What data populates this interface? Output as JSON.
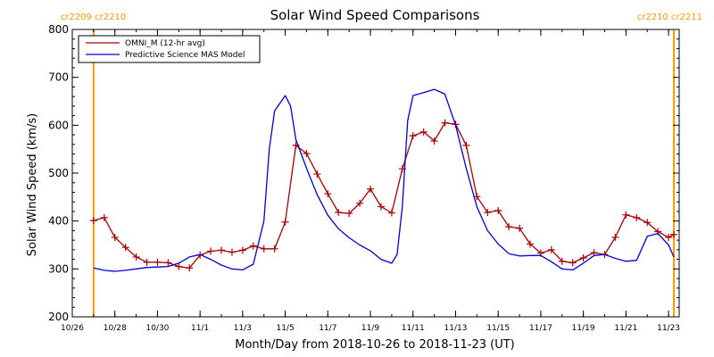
{
  "chart_data": {
    "type": "line",
    "title": "Solar Wind Speed Comparisons",
    "xlabel": "Month/Day from 2018-10-26 to 2018-11-23 (UT)",
    "ylabel": "Solar Wind Speed (km/s)",
    "ylim": [
      200,
      800
    ],
    "xlim": [
      "2018-10-26",
      "2018-11-23T12:00"
    ],
    "y_ticks": [
      200,
      300,
      400,
      500,
      600,
      700,
      800
    ],
    "x_ticks": [
      {
        "date": "2018-10-26",
        "label": "10/26"
      },
      {
        "date": "2018-10-28",
        "label": "10/28"
      },
      {
        "date": "2018-10-30",
        "label": "10/30"
      },
      {
        "date": "2018-11-01",
        "label": "11/1"
      },
      {
        "date": "2018-11-03",
        "label": "11/3"
      },
      {
        "date": "2018-11-05",
        "label": "11/5"
      },
      {
        "date": "2018-11-07",
        "label": "11/7"
      },
      {
        "date": "2018-11-09",
        "label": "11/9"
      },
      {
        "date": "2018-11-11",
        "label": "11/11"
      },
      {
        "date": "2018-11-13",
        "label": "11/13"
      },
      {
        "date": "2018-11-15",
        "label": "11/15"
      },
      {
        "date": "2018-11-17",
        "label": "11/17"
      },
      {
        "date": "2018-11-19",
        "label": "11/19"
      },
      {
        "date": "2018-11-21",
        "label": "11/21"
      },
      {
        "date": "2018-11-23",
        "label": "11/23"
      }
    ],
    "grid": false,
    "legend_position": "top-left",
    "carrington_markers": [
      {
        "date": "2018-10-27",
        "label": "cr2209 cr2210",
        "label_side": "left",
        "color": "#ff9900"
      },
      {
        "date": "2018-11-23T06:00",
        "label": "cr2210 cr2211",
        "label_side": "right",
        "color": "#ff9900"
      }
    ],
    "series": [
      {
        "name": "OMNI_M (12-hr avg)",
        "color": "#aa0000",
        "marker": "plus",
        "points": [
          [
            "2018-10-27T00:00",
            401
          ],
          [
            "2018-10-27T12:00",
            407
          ],
          [
            "2018-10-28T00:00",
            366
          ],
          [
            "2018-10-28T12:00",
            345
          ],
          [
            "2018-10-29T00:00",
            325
          ],
          [
            "2018-10-29T12:00",
            314
          ],
          [
            "2018-10-30T00:00",
            314
          ],
          [
            "2018-10-30T12:00",
            313
          ],
          [
            "2018-10-31T00:00",
            305
          ],
          [
            "2018-10-31T12:00",
            302
          ],
          [
            "2018-11-01T00:00",
            329
          ],
          [
            "2018-11-01T12:00",
            337
          ],
          [
            "2018-11-02T00:00",
            339
          ],
          [
            "2018-11-02T12:00",
            335
          ],
          [
            "2018-11-03T00:00",
            339
          ],
          [
            "2018-11-03T12:00",
            348
          ],
          [
            "2018-11-04T00:00",
            342
          ],
          [
            "2018-11-04T12:00",
            342
          ],
          [
            "2018-11-05T00:00",
            398
          ],
          [
            "2018-11-05T12:00",
            558
          ],
          [
            "2018-11-06T00:00",
            541
          ],
          [
            "2018-11-06T12:00",
            498
          ],
          [
            "2018-11-07T00:00",
            457
          ],
          [
            "2018-11-07T12:00",
            418
          ],
          [
            "2018-11-08T00:00",
            416
          ],
          [
            "2018-11-08T12:00",
            437
          ],
          [
            "2018-11-09T00:00",
            467
          ],
          [
            "2018-11-09T12:00",
            430
          ],
          [
            "2018-11-10T00:00",
            417
          ],
          [
            "2018-11-10T12:00",
            509
          ],
          [
            "2018-11-11T00:00",
            578
          ],
          [
            "2018-11-11T12:00",
            586
          ],
          [
            "2018-11-12T00:00",
            567
          ],
          [
            "2018-11-12T12:00",
            605
          ],
          [
            "2018-11-13T00:00",
            602
          ],
          [
            "2018-11-13T12:00",
            558
          ],
          [
            "2018-11-14T00:00",
            451
          ],
          [
            "2018-11-14T12:00",
            418
          ],
          [
            "2018-11-15T00:00",
            422
          ],
          [
            "2018-11-15T12:00",
            388
          ],
          [
            "2018-11-16T00:00",
            385
          ],
          [
            "2018-11-16T12:00",
            352
          ],
          [
            "2018-11-17T00:00",
            333
          ],
          [
            "2018-11-17T12:00",
            340
          ],
          [
            "2018-11-18T00:00",
            316
          ],
          [
            "2018-11-18T12:00",
            313
          ],
          [
            "2018-11-19T00:00",
            323
          ],
          [
            "2018-11-19T12:00",
            334
          ],
          [
            "2018-11-20T00:00",
            330
          ],
          [
            "2018-11-20T12:00",
            366
          ],
          [
            "2018-11-21T00:00",
            413
          ],
          [
            "2018-11-21T12:00",
            407
          ],
          [
            "2018-11-22T00:00",
            397
          ],
          [
            "2018-11-22T12:00",
            378
          ],
          [
            "2018-11-23T00:00",
            366
          ],
          [
            "2018-11-23T06:00",
            372
          ]
        ]
      },
      {
        "name": "Predictive Science MAS Model",
        "color": "#0000dd",
        "marker": "none",
        "points": [
          [
            "2018-10-27T00:00",
            302
          ],
          [
            "2018-10-27T12:00",
            297
          ],
          [
            "2018-10-28T00:00",
            295
          ],
          [
            "2018-10-28T12:00",
            297
          ],
          [
            "2018-10-29T00:00",
            300
          ],
          [
            "2018-10-29T12:00",
            303
          ],
          [
            "2018-10-30T00:00",
            304
          ],
          [
            "2018-10-30T12:00",
            305
          ],
          [
            "2018-10-31T00:00",
            312
          ],
          [
            "2018-10-31T12:00",
            325
          ],
          [
            "2018-11-01T00:00",
            330
          ],
          [
            "2018-11-01T12:00",
            320
          ],
          [
            "2018-11-02T00:00",
            308
          ],
          [
            "2018-11-02T12:00",
            300
          ],
          [
            "2018-11-03T00:00",
            298
          ],
          [
            "2018-11-03T12:00",
            310
          ],
          [
            "2018-11-04T00:00",
            400
          ],
          [
            "2018-11-04T06:00",
            550
          ],
          [
            "2018-11-04T12:00",
            630
          ],
          [
            "2018-11-05T00:00",
            662
          ],
          [
            "2018-11-05T06:00",
            640
          ],
          [
            "2018-11-05T12:00",
            570
          ],
          [
            "2018-11-06T00:00",
            510
          ],
          [
            "2018-11-06T12:00",
            455
          ],
          [
            "2018-11-07T00:00",
            412
          ],
          [
            "2018-11-07T12:00",
            384
          ],
          [
            "2018-11-08T00:00",
            365
          ],
          [
            "2018-11-08T12:00",
            350
          ],
          [
            "2018-11-09T00:00",
            338
          ],
          [
            "2018-11-09T12:00",
            320
          ],
          [
            "2018-11-10T00:00",
            312
          ],
          [
            "2018-11-10T06:00",
            330
          ],
          [
            "2018-11-10T12:00",
            430
          ],
          [
            "2018-11-10T18:00",
            610
          ],
          [
            "2018-11-11T00:00",
            662
          ],
          [
            "2018-11-11T12:00",
            668
          ],
          [
            "2018-11-12T00:00",
            675
          ],
          [
            "2018-11-12T12:00",
            665
          ],
          [
            "2018-11-13T00:00",
            600
          ],
          [
            "2018-11-13T12:00",
            510
          ],
          [
            "2018-11-14T00:00",
            430
          ],
          [
            "2018-11-14T12:00",
            380
          ],
          [
            "2018-11-15T00:00",
            352
          ],
          [
            "2018-11-15T12:00",
            332
          ],
          [
            "2018-11-16T00:00",
            327
          ],
          [
            "2018-11-16T12:00",
            328
          ],
          [
            "2018-11-17T00:00",
            328
          ],
          [
            "2018-11-17T12:00",
            315
          ],
          [
            "2018-11-18T00:00",
            300
          ],
          [
            "2018-11-18T12:00",
            298
          ],
          [
            "2018-11-19T00:00",
            312
          ],
          [
            "2018-11-19T12:00",
            328
          ],
          [
            "2018-11-20T00:00",
            330
          ],
          [
            "2018-11-20T12:00",
            322
          ],
          [
            "2018-11-21T00:00",
            316
          ],
          [
            "2018-11-21T12:00",
            318
          ],
          [
            "2018-11-22T00:00",
            368
          ],
          [
            "2018-11-22T12:00",
            374
          ],
          [
            "2018-11-23T00:00",
            350
          ],
          [
            "2018-11-23T06:00",
            325
          ]
        ]
      }
    ]
  }
}
